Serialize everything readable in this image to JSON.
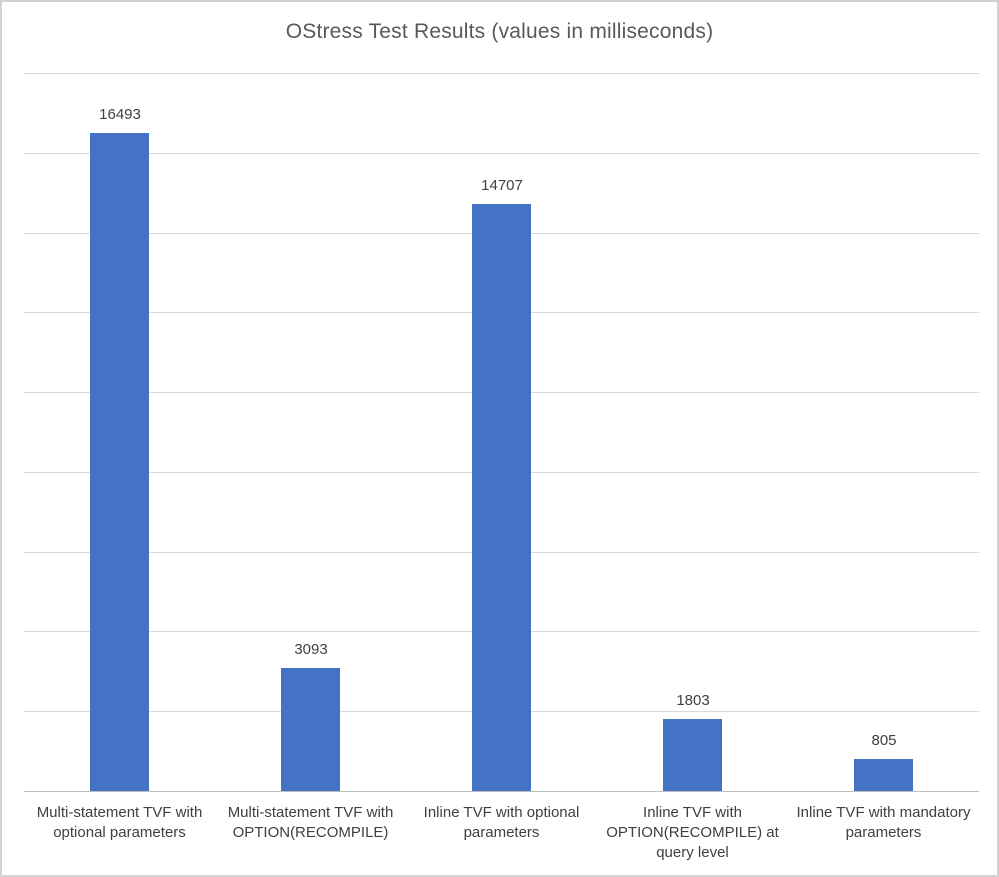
{
  "window": {
    "background": "#ffffff",
    "frame_border_color": "#d2d2d2"
  },
  "chart_data": {
    "type": "bar",
    "title": "OStress Test Results (values in milliseconds)",
    "categories": [
      "Multi-statement TVF with optional parameters",
      "Multi-statement TVF with OPTION(RECOMPILE)",
      "Inline TVF with optional parameters",
      "Inline TVF with OPTION(RECOMPILE) at query level",
      "Inline TVF with mandatory parameters"
    ],
    "values": [
      16493,
      3093,
      14707,
      1803,
      805
    ],
    "data_labels": [
      "16493",
      "3093",
      "14707",
      "1803",
      "805"
    ],
    "xlabel": "",
    "ylabel": "",
    "ylim": [
      0,
      18000
    ],
    "gridline_interval": 2000,
    "grid": true,
    "legend": "none",
    "y_axis_tick_labels_visible": false,
    "bar_color": "#4472C4",
    "gridline_color": "#d9d9d9",
    "axis_line_color": "#bdbdbd",
    "title_color": "#595959",
    "label_color": "#404040"
  }
}
